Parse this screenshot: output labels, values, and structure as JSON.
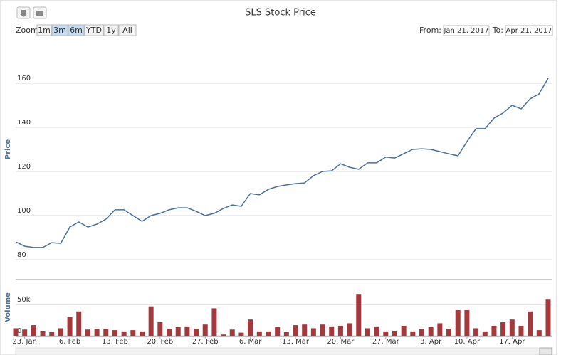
{
  "ui": {
    "zoom_label": "Zoom",
    "zoom_buttons": [
      "1m",
      "3m",
      "6m",
      "YTD",
      "1y",
      "All"
    ],
    "from_label": "From:",
    "from": "Jan 21, 2017",
    "to_label": "To:",
    "to": "Apr 21, 2017"
  },
  "chart_data": [
    {
      "type": "line",
      "title": "SLS Stock Price",
      "ylabel": "Price",
      "color": "#4a6f9a",
      "grid": true,
      "ylim": [
        80,
        180
      ],
      "yticks": [
        80,
        100,
        120,
        140,
        160
      ],
      "values": [
        88.1,
        86.1,
        85.5,
        85.5,
        87.7,
        87.4,
        94.8,
        97.1,
        94.8,
        96.1,
        98.4,
        102.6,
        102.6,
        100,
        97.4,
        100,
        101,
        102.6,
        103.5,
        103.5,
        101.9,
        100,
        101,
        103.2,
        104.8,
        104.2,
        110,
        109.4,
        111.9,
        113.2,
        113.9,
        114.5,
        114.8,
        118.1,
        120,
        120.3,
        123.5,
        121.9,
        121,
        123.9,
        123.9,
        126.5,
        126.1,
        128.1,
        130,
        130.3,
        130,
        129,
        128,
        127.1,
        133.5,
        139.4,
        139.4,
        144.2,
        146.5,
        150,
        148.4,
        152.9,
        155.2,
        162.3
      ]
    },
    {
      "type": "bar",
      "ylabel": "Volume",
      "color": "#a3393c",
      "grid": true,
      "ylim": [
        0,
        90000
      ],
      "yticks": [
        0,
        {
          "value": 50000,
          "label": "50k"
        }
      ],
      "categories": [
        null,
        "23. Jan",
        null,
        null,
        null,
        null,
        "6. Feb",
        null,
        null,
        null,
        null,
        "13. Feb",
        null,
        null,
        null,
        null,
        "20. Feb",
        null,
        null,
        null,
        null,
        "27. Feb",
        null,
        null,
        null,
        null,
        "6. Mar",
        null,
        null,
        null,
        null,
        "13. Mar",
        null,
        null,
        null,
        null,
        "20. Mar",
        null,
        null,
        null,
        null,
        "27. Mar",
        null,
        null,
        null,
        null,
        "3. Apr",
        null,
        null,
        null,
        "10. Apr",
        null,
        null,
        null,
        null,
        "17. Apr",
        null,
        null,
        null,
        null
      ],
      "values": [
        12000,
        10000,
        17000,
        8000,
        6000,
        12000,
        30000,
        39000,
        10000,
        11000,
        11000,
        9000,
        7000,
        9000,
        7000,
        47000,
        22000,
        11000,
        14000,
        15000,
        11000,
        18000,
        44000,
        2000,
        10000,
        5000,
        26000,
        7000,
        7000,
        14000,
        6000,
        17000,
        18000,
        12000,
        18000,
        15000,
        16000,
        20000,
        67000,
        12000,
        15000,
        7000,
        8000,
        16000,
        7000,
        11000,
        14000,
        20000,
        11000,
        41000,
        41000,
        12000,
        7000,
        16000,
        22000,
        26000,
        16000,
        39000,
        9000,
        59000
      ]
    }
  ]
}
